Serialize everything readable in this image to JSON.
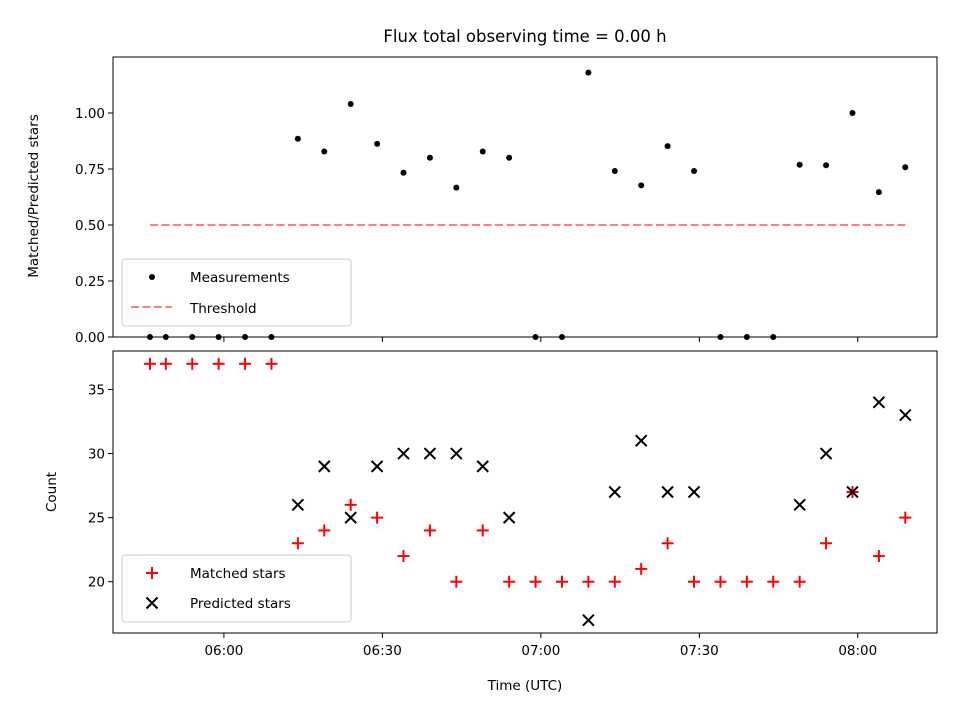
{
  "title": "Flux total observing time = 0.00 h",
  "chart_data": [
    {
      "type": "scatter",
      "ylabel": "Matched/Predicted stars",
      "ylim": [
        0,
        1.25
      ],
      "yticks": [
        "0.00",
        "0.25",
        "0.50",
        "0.75",
        "1.00"
      ],
      "legend_placement": "lower-left",
      "series": [
        {
          "name": "Measurements",
          "marker": "dot",
          "color": "#000000",
          "x": [
            "05:46",
            "05:49",
            "05:54",
            "05:59",
            "06:04",
            "06:09",
            "06:14",
            "06:19",
            "06:24",
            "06:29",
            "06:34",
            "06:39",
            "06:44",
            "06:49",
            "06:54",
            "06:59",
            "07:04",
            "07:09",
            "07:14",
            "07:19",
            "07:24",
            "07:29",
            "07:34",
            "07:39",
            "07:44",
            "07:49",
            "07:54",
            "07:59",
            "08:04",
            "08:09"
          ],
          "y": [
            0,
            0,
            0,
            0,
            0,
            0,
            0.885,
            0.828,
            1.04,
            0.862,
            0.733,
            0.8,
            0.667,
            0.828,
            0.8,
            0,
            0,
            1.18,
            0.741,
            0.677,
            0.852,
            0.741,
            0,
            0,
            0,
            0.769,
            0.767,
            1.0,
            0.647,
            0.758
          ]
        },
        {
          "name": "Threshold",
          "style": "dashed",
          "color": "#ff7f7f",
          "x": [
            "05:46",
            "08:09"
          ],
          "y": [
            0.5,
            0.5
          ]
        }
      ]
    },
    {
      "type": "scatter",
      "xlabel": "Time (UTC)",
      "ylabel": "Count",
      "ylim": [
        16,
        38
      ],
      "yticks": [
        "20",
        "25",
        "30",
        "35"
      ],
      "xticks": [
        "06:00",
        "06:30",
        "07:00",
        "07:30",
        "08:00"
      ],
      "xlim": [
        "05:39",
        "08:15"
      ],
      "legend_placement": "lower-left",
      "series": [
        {
          "name": "Matched stars",
          "marker": "plus",
          "color": "#ff0000",
          "x": [
            "05:46",
            "05:49",
            "05:54",
            "05:59",
            "06:04",
            "06:09",
            "06:14",
            "06:19",
            "06:24",
            "06:29",
            "06:34",
            "06:39",
            "06:44",
            "06:49",
            "06:54",
            "06:59",
            "07:04",
            "07:09",
            "07:14",
            "07:19",
            "07:24",
            "07:29",
            "07:34",
            "07:39",
            "07:44",
            "07:49",
            "07:54",
            "07:59",
            "08:04",
            "08:09"
          ],
          "y": [
            37,
            37,
            37,
            37,
            37,
            37,
            23,
            24,
            26,
            25,
            22,
            24,
            20,
            24,
            20,
            20,
            20,
            20,
            20,
            21,
            23,
            20,
            20,
            20,
            20,
            20,
            23,
            27,
            22,
            25
          ]
        },
        {
          "name": "Predicted stars",
          "marker": "x",
          "color": "#000000",
          "x": [
            "06:14",
            "06:19",
            "06:24",
            "06:29",
            "06:34",
            "06:39",
            "06:44",
            "06:49",
            "06:54",
            "07:09",
            "07:14",
            "07:19",
            "07:24",
            "07:29",
            "07:49",
            "07:54",
            "07:59",
            "08:04",
            "08:09"
          ],
          "y": [
            26,
            29,
            25,
            29,
            30,
            30,
            30,
            29,
            25,
            17,
            27,
            31,
            27,
            27,
            26,
            30,
            27,
            34,
            33
          ]
        }
      ]
    }
  ]
}
